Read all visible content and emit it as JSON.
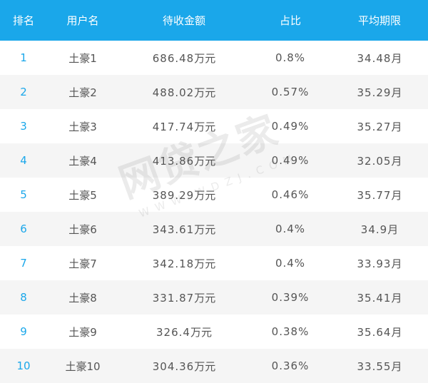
{
  "headers": {
    "rank": "排名",
    "username": "用户名",
    "amount": "待收金额",
    "ratio": "占比",
    "term": "平均期限"
  },
  "rows": [
    {
      "rank": "1",
      "user": "土豪1",
      "amount": "686.48",
      "amount_unit": "万元",
      "ratio": "0.8%",
      "term": "34.48",
      "term_unit": "月"
    },
    {
      "rank": "2",
      "user": "土豪2",
      "amount": "488.02",
      "amount_unit": "万元",
      "ratio": "0.57%",
      "term": "35.29",
      "term_unit": "月"
    },
    {
      "rank": "3",
      "user": "土豪3",
      "amount": "417.74",
      "amount_unit": "万元",
      "ratio": "0.49%",
      "term": "35.27",
      "term_unit": "月"
    },
    {
      "rank": "4",
      "user": "土豪4",
      "amount": "413.86",
      "amount_unit": "万元",
      "ratio": "0.49%",
      "term": "32.05",
      "term_unit": "月"
    },
    {
      "rank": "5",
      "user": "土豪5",
      "amount": "389.29",
      "amount_unit": "万元",
      "ratio": "0.46%",
      "term": "35.77",
      "term_unit": "月"
    },
    {
      "rank": "6",
      "user": "土豪6",
      "amount": "343.61",
      "amount_unit": "万元",
      "ratio": "0.4%",
      "term": "34.9",
      "term_unit": "月"
    },
    {
      "rank": "7",
      "user": "土豪7",
      "amount": "342.18",
      "amount_unit": "万元",
      "ratio": "0.4%",
      "term": "33.93",
      "term_unit": "月"
    },
    {
      "rank": "8",
      "user": "土豪8",
      "amount": "331.87",
      "amount_unit": "万元",
      "ratio": "0.39%",
      "term": "35.41",
      "term_unit": "月"
    },
    {
      "rank": "9",
      "user": "土豪9",
      "amount": "326.4",
      "amount_unit": "万元",
      "ratio": "0.38%",
      "term": "35.64",
      "term_unit": "月"
    },
    {
      "rank": "10",
      "user": "土豪10",
      "amount": "304.36",
      "amount_unit": "万元",
      "ratio": "0.36%",
      "term": "33.55",
      "term_unit": "月"
    }
  ],
  "watermark": {
    "main": "网贷之家",
    "sub": "WWW.WDZJ.COM"
  },
  "colors": {
    "header_bg": "#1aa7ea",
    "header_text": "#ffffff",
    "rank_text": "#1aa7ea",
    "body_text": "#555555",
    "stripe": "#f5f5f5"
  }
}
